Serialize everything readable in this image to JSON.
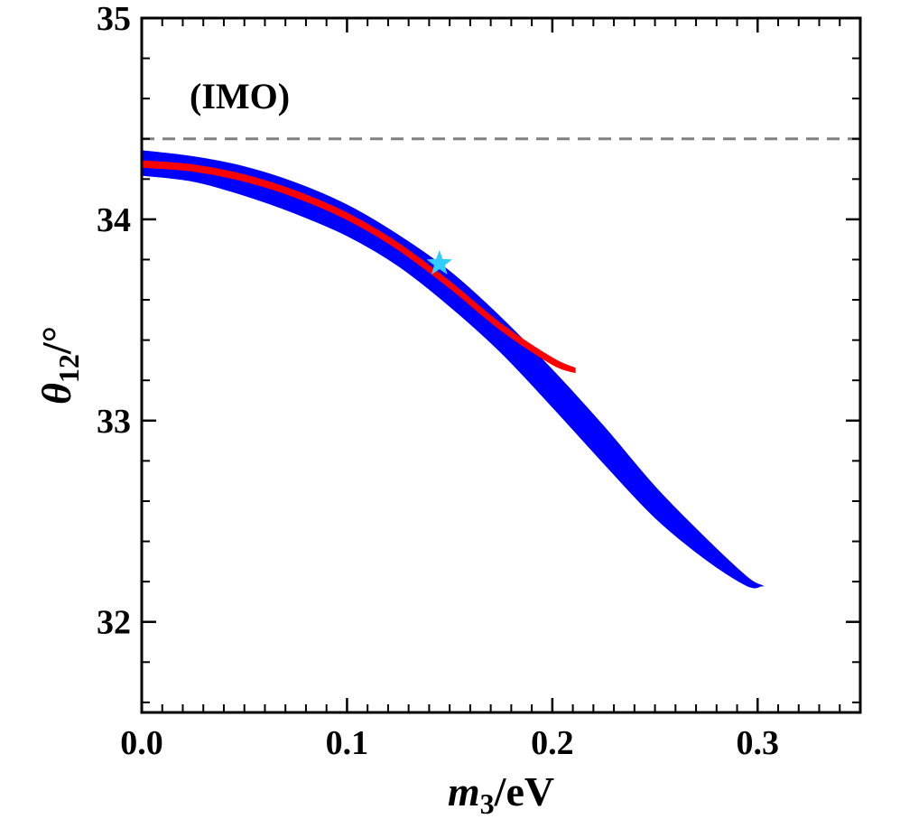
{
  "chart_data": {
    "type": "scatter",
    "annotation": "(IMO)",
    "xlabel": {
      "main": "m",
      "sub": "3",
      "rest": "/eV"
    },
    "ylabel": {
      "main": "θ",
      "sub": "12",
      "rest": "/°"
    },
    "xlim": [
      0.0,
      0.35
    ],
    "ylim": [
      31.55,
      35.0
    ],
    "x_tick_labels": [
      "0.0",
      "0.1",
      "0.2",
      "0.3"
    ],
    "x_tick_values": [
      0.0,
      0.1,
      0.2,
      0.3
    ],
    "y_tick_labels": [
      "32",
      "33",
      "34",
      "35"
    ],
    "y_tick_values": [
      32,
      33,
      34,
      35
    ],
    "reference_line": {
      "y": 34.4,
      "style": "dashed",
      "color": "#808080"
    },
    "series": [
      {
        "color": "#0000ff",
        "region": "band",
        "x": [
          0.0,
          0.025,
          0.05,
          0.075,
          0.1,
          0.125,
          0.15,
          0.175,
          0.2,
          0.225,
          0.25,
          0.275,
          0.295,
          0.302
        ],
        "upper": [
          34.34,
          34.31,
          34.26,
          34.18,
          34.07,
          33.92,
          33.74,
          33.51,
          33.25,
          32.97,
          32.67,
          32.41,
          32.22,
          32.18
        ],
        "lower": [
          34.22,
          34.19,
          34.12,
          34.03,
          33.92,
          33.77,
          33.57,
          33.34,
          33.07,
          32.79,
          32.52,
          32.31,
          32.18,
          32.18
        ]
      },
      {
        "color": "#ff0000",
        "region": "band",
        "x": [
          0.0,
          0.025,
          0.05,
          0.075,
          0.1,
          0.125,
          0.15,
          0.175,
          0.2,
          0.211
        ],
        "upper": [
          34.29,
          34.27,
          34.22,
          34.14,
          34.03,
          33.88,
          33.69,
          33.48,
          33.31,
          33.26
        ],
        "lower": [
          34.26,
          34.24,
          34.19,
          34.11,
          34.0,
          33.85,
          33.66,
          33.45,
          33.28,
          33.24
        ]
      }
    ],
    "best_fit_point": {
      "x": 0.145,
      "y": 33.78,
      "color": "#33ccff",
      "marker": "star"
    }
  }
}
